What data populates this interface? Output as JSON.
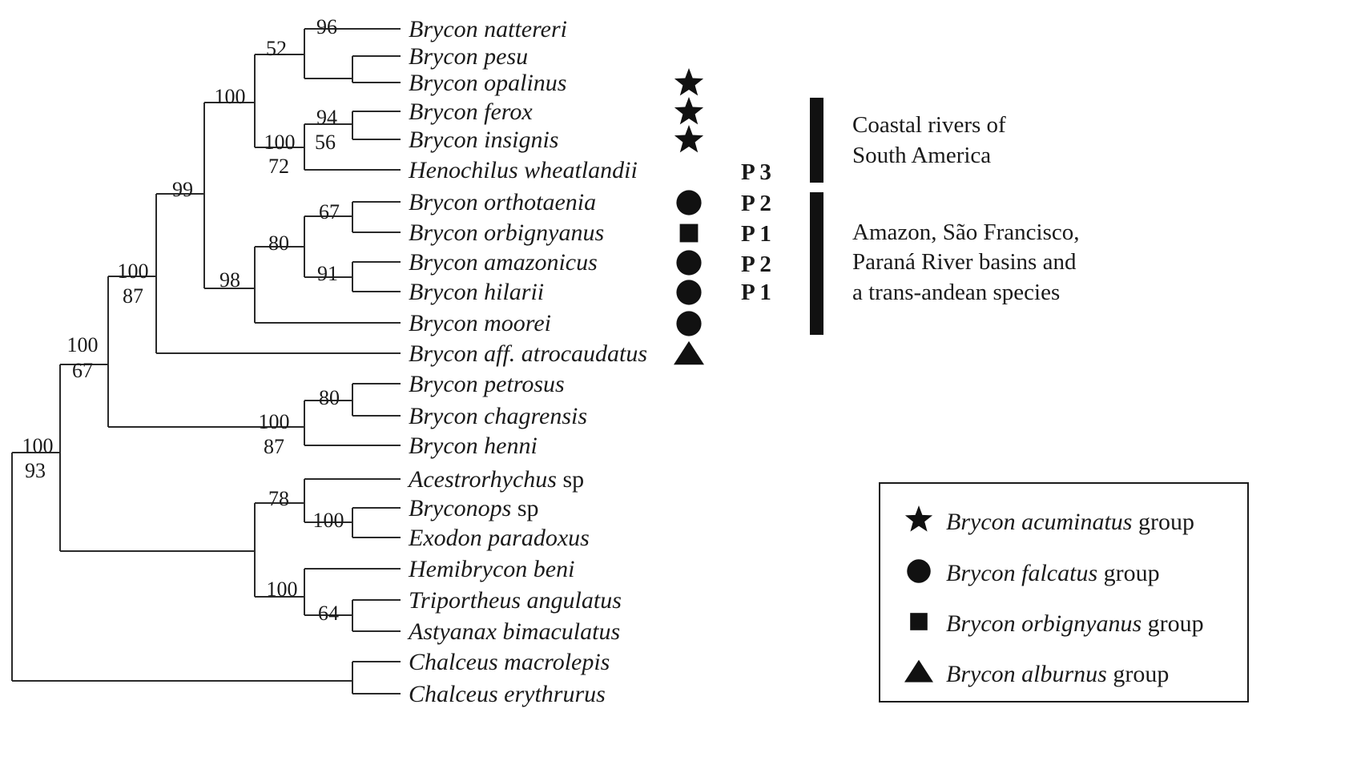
{
  "tree": {
    "taxa": [
      {
        "name": "Brycon nattereri",
        "marker": ""
      },
      {
        "name": "Brycon pesu",
        "marker": ""
      },
      {
        "name": "Brycon opalinus",
        "marker": "star"
      },
      {
        "name": "Brycon ferox",
        "marker": "star"
      },
      {
        "name": "Brycon insignis",
        "marker": "star"
      },
      {
        "name": "Henochilus wheatlandii",
        "marker": ""
      },
      {
        "name": "Brycon orthotaenia",
        "marker": "circle"
      },
      {
        "name": "Brycon orbignyanus",
        "marker": "square"
      },
      {
        "name": "Brycon amazonicus",
        "marker": "circle"
      },
      {
        "name": "Brycon hilarii",
        "marker": "circle"
      },
      {
        "name": "Brycon moorei",
        "marker": "circle"
      },
      {
        "name": "Brycon aff. atrocaudatus",
        "marker": "triangle"
      },
      {
        "name": "Brycon petrosus",
        "marker": ""
      },
      {
        "name": "Brycon chagrensis",
        "marker": ""
      },
      {
        "name": "Brycon henni",
        "marker": ""
      },
      {
        "name": "Acestrorhychus",
        "suffix": " sp",
        "marker": ""
      },
      {
        "name": "Bryconops",
        "suffix": " sp",
        "marker": ""
      },
      {
        "name": "Exodon paradoxus",
        "marker": ""
      },
      {
        "name": "Hemibrycon beni",
        "marker": ""
      },
      {
        "name": "Triportheus angulatus",
        "marker": ""
      },
      {
        "name": "Astyanax bimaculatus",
        "marker": ""
      },
      {
        "name": "Chalceus macrolepis",
        "marker": ""
      },
      {
        "name": "Chalceus erythrurus",
        "marker": ""
      }
    ],
    "support_values": [
      "96",
      "52",
      "100",
      "94",
      "56",
      "100",
      "72",
      "99",
      "67",
      "80",
      "91",
      "98",
      "100",
      "87",
      "100",
      "67",
      "80",
      "100",
      "87",
      "100",
      "93",
      "78",
      "100",
      "100",
      "64"
    ],
    "population_labels": [
      "P 3",
      "P 2",
      "P 1",
      "P 2",
      "P 1"
    ]
  },
  "regions": [
    {
      "lines": [
        "Coastal rivers of",
        "South America"
      ]
    },
    {
      "lines": [
        "Amazon, São Francisco,",
        "Paraná River basins and",
        "a trans-andean species"
      ]
    }
  ],
  "legend": [
    {
      "marker": "star",
      "italic": "Brycon acuminatus",
      "rest": " group"
    },
    {
      "marker": "circle",
      "italic": "Brycon falcatus",
      "rest": " group"
    },
    {
      "marker": "square",
      "italic": "Brycon orbignyanus",
      "rest": " group"
    },
    {
      "marker": "triangle",
      "italic": "Brycon alburnus",
      "rest": " group"
    }
  ]
}
